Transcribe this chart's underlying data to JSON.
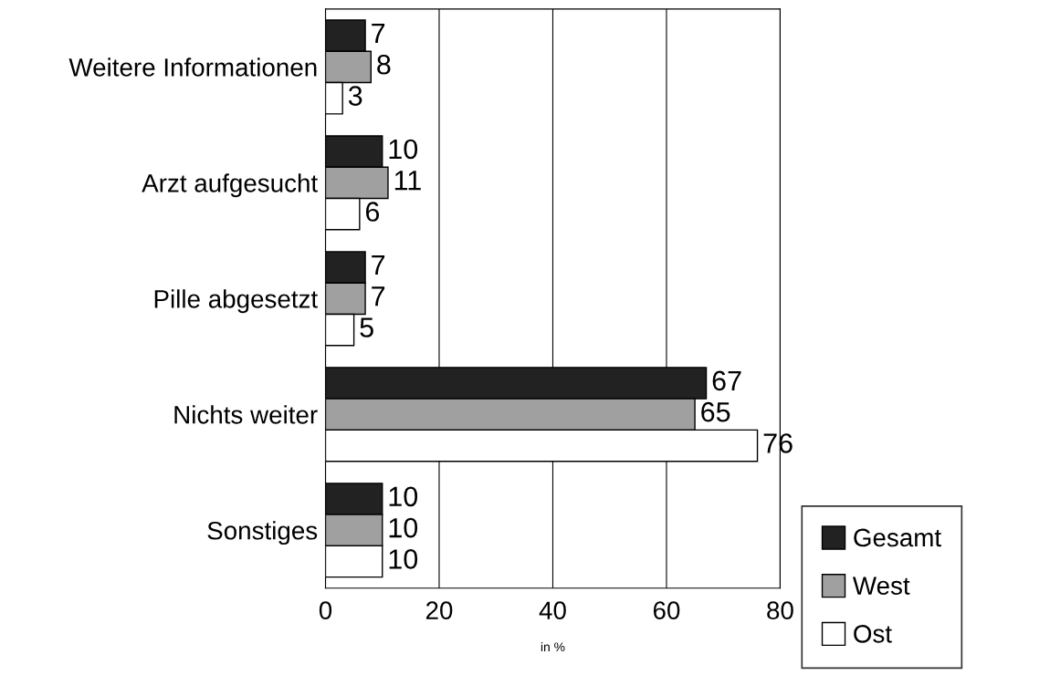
{
  "chart_data": {
    "type": "bar",
    "orientation": "horizontal",
    "xlabel": "in %",
    "categories": [
      "Weitere Informationen",
      "Arzt aufgesucht",
      "Pille abgesetzt",
      "Nichts weiter",
      "Sonstiges"
    ],
    "series": [
      {
        "name": "Gesamt",
        "color": "#222222",
        "values": [
          7,
          10,
          7,
          67,
          10
        ]
      },
      {
        "name": "West",
        "color": "#a0a0a0",
        "values": [
          8,
          11,
          7,
          65,
          10
        ]
      },
      {
        "name": "Ost",
        "color": "#ffffff",
        "values": [
          3,
          6,
          5,
          76,
          10
        ]
      }
    ],
    "xlim": [
      0,
      80
    ],
    "xticks": [
      0,
      20,
      40,
      60,
      80
    ],
    "grid": "x",
    "legend": "bottom right",
    "data_labels": true
  }
}
